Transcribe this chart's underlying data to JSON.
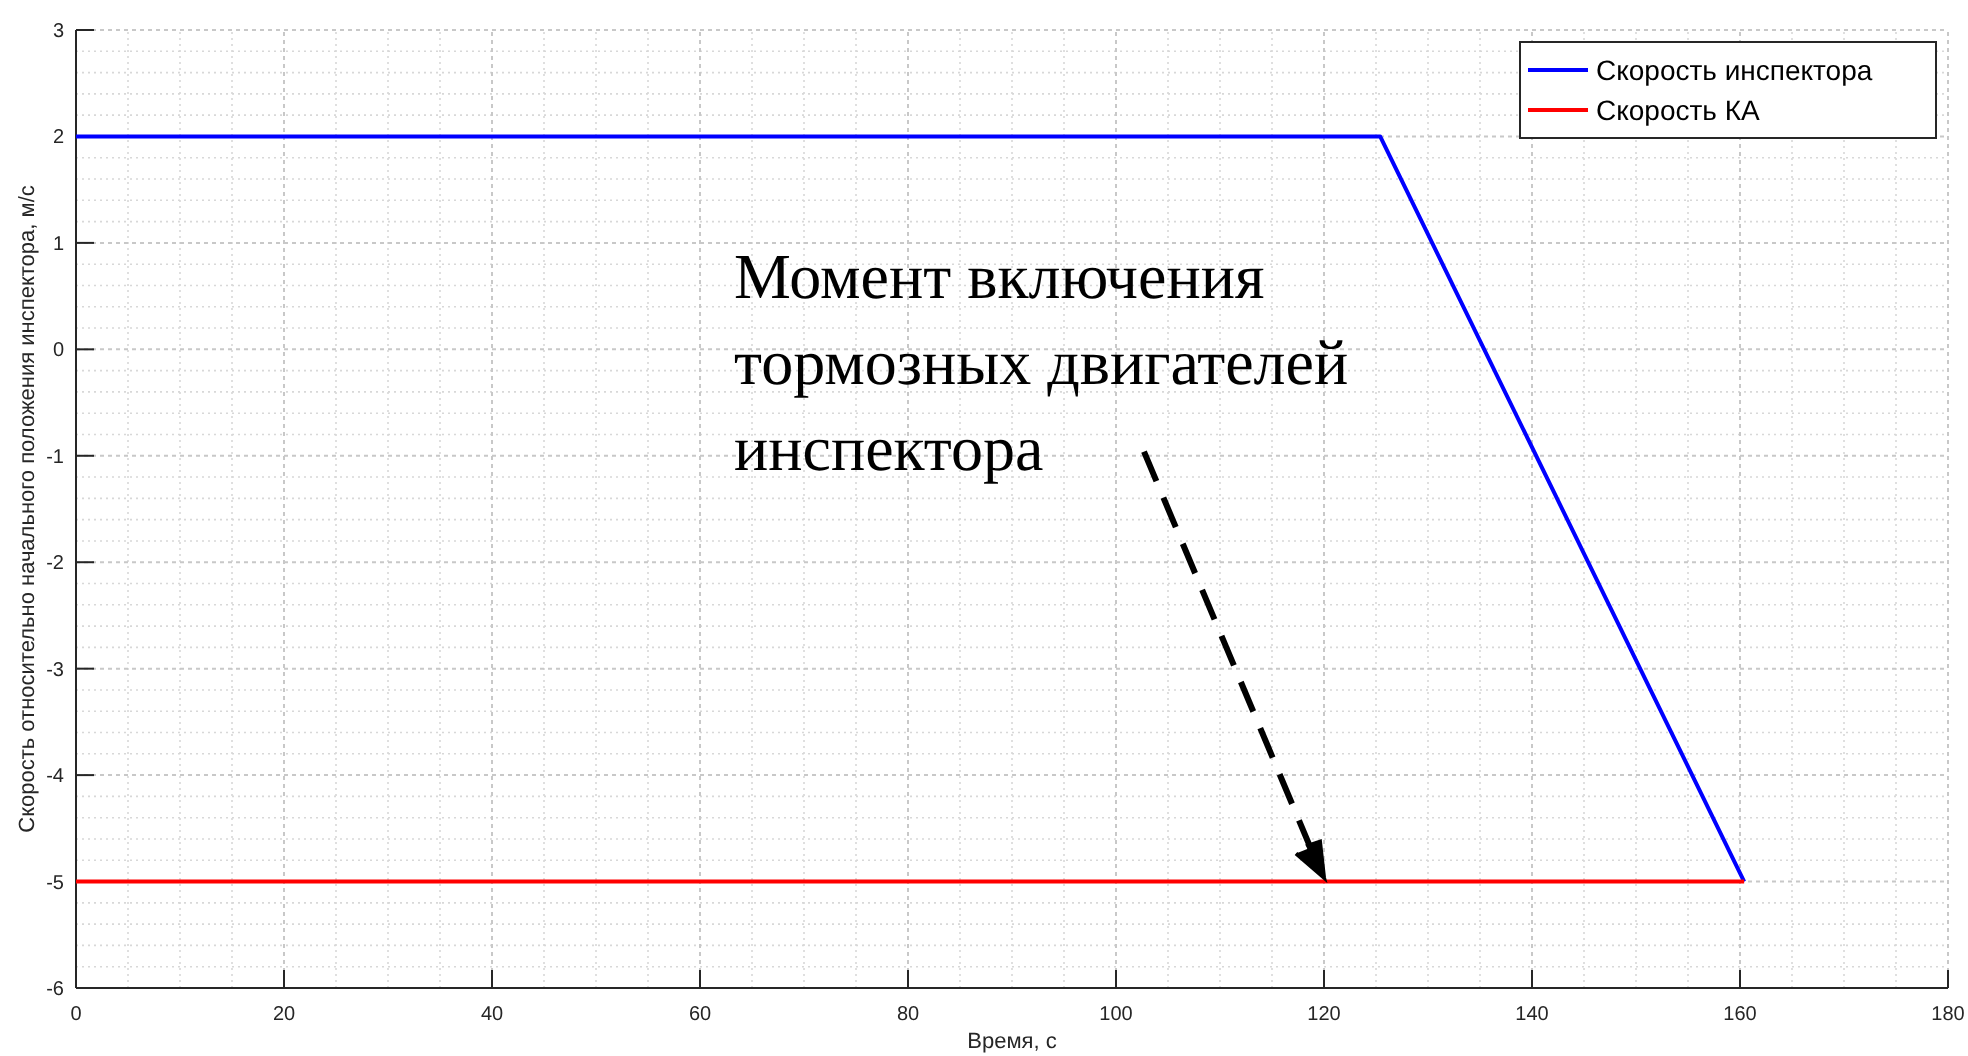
{
  "chart_data": {
    "type": "line",
    "xlabel": "Время, с",
    "ylabel": "Скорость относительно начального положения инспектора, м/с",
    "xlim": [
      0,
      180
    ],
    "xticks": [
      0,
      20,
      40,
      60,
      80,
      100,
      120,
      140,
      160,
      180
    ],
    "ylim": [
      -6,
      3
    ],
    "yticks": [
      -6,
      -5,
      -4,
      -3,
      -2,
      -1,
      0,
      1,
      2,
      3
    ],
    "grid": true,
    "legend": "top right",
    "line_style": "solid",
    "marker": "none",
    "series": [
      {
        "name": "Скорость инспектора",
        "color": "#0000ff",
        "x": [
          0,
          125.4,
          160.4
        ],
        "values": [
          2,
          2,
          -5
        ]
      },
      {
        "name": "Скорость КА",
        "color": "#ff0000",
        "x": [
          0,
          160.4
        ],
        "values": [
          -5,
          -5
        ]
      }
    ],
    "annotations": [
      {
        "text": "Момент включения\nтормозных двигателей\nинспектора",
        "x": 120,
        "y": -5
      }
    ]
  }
}
